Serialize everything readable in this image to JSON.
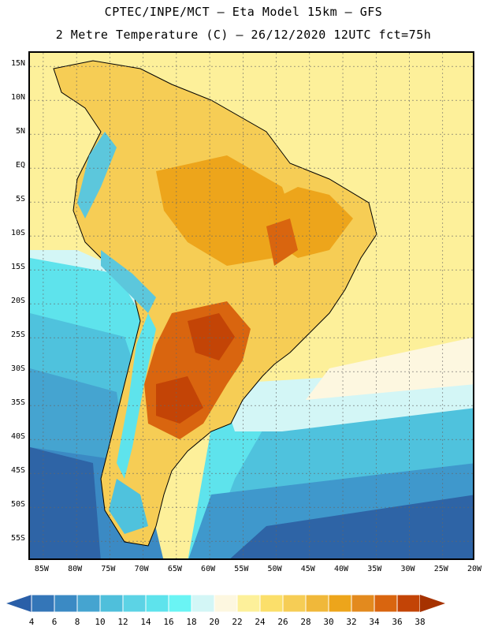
{
  "header": {
    "line1": "CPTEC/INPE/MCT –  Eta Model 15km – GFS",
    "line2": "2 Metre Temperature (C) – 26/12/2020 12UTC fct=75h"
  },
  "map": {
    "lat_labels": [
      "15N",
      "10N",
      "5N",
      "EQ",
      "5S",
      "10S",
      "15S",
      "20S",
      "25S",
      "30S",
      "35S",
      "40S",
      "45S",
      "50S",
      "55S"
    ],
    "lon_labels": [
      "85W",
      "80W",
      "75W",
      "70W",
      "65W",
      "60W",
      "55W",
      "50W",
      "45W",
      "40W",
      "35W",
      "30W",
      "25W",
      "20W"
    ],
    "lat_range": [
      17,
      -58
    ],
    "lon_range": [
      -87,
      -20
    ]
  },
  "colorbar": {
    "labels": [
      "4",
      "6",
      "8",
      "10",
      "12",
      "14",
      "16",
      "18",
      "20",
      "22",
      "24",
      "26",
      "28",
      "30",
      "32",
      "34",
      "36",
      "38"
    ],
    "colors": [
      "#2a5fa8",
      "#3476b8",
      "#3b8ac4",
      "#45a4d0",
      "#4fbfdb",
      "#5cd3e5",
      "#5ee3ec",
      "#6af4f4",
      "#d3f6f6",
      "#fdf7e0",
      "#fdf09a",
      "#fbdf6a",
      "#f6cd55",
      "#f0b83a",
      "#eda51b",
      "#e38a1e",
      "#d9650f",
      "#c34406",
      "#a63200"
    ],
    "units": "C"
  },
  "regions": [
    {
      "name": "ocean-cold",
      "color": "#2e64a6"
    },
    {
      "name": "ocean-cool",
      "color": "#3f98cc"
    },
    {
      "name": "ocean-mild",
      "color": "#4fc2dd"
    },
    {
      "name": "ocean-cyan",
      "color": "#5ee3ec"
    },
    {
      "name": "ocean-warm",
      "color": "#fdf09a"
    },
    {
      "name": "land-warm",
      "color": "#f6cd55"
    },
    {
      "name": "land-hot",
      "color": "#eda51b"
    },
    {
      "name": "land-veryhot",
      "color": "#d9650f"
    },
    {
      "name": "andes-cold",
      "color": "#5cc7dc"
    }
  ]
}
